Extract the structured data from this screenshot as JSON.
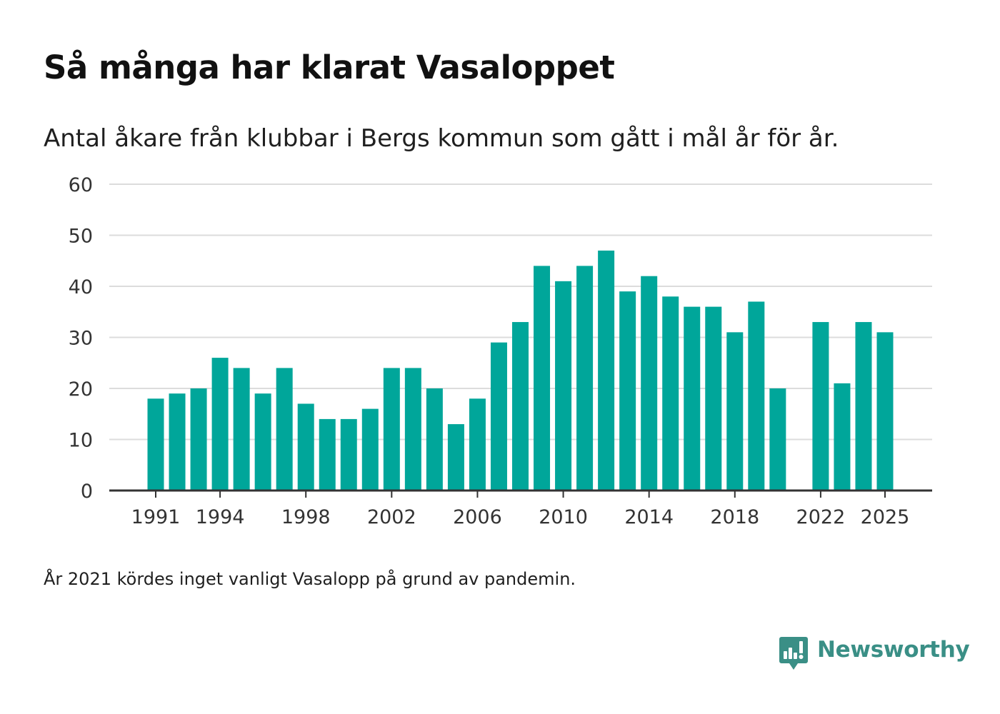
{
  "title": "Så många har klarat Vasaloppet",
  "subtitle": "Antal åkare från klubbar i Bergs kommun som gått i mål år för år.",
  "footnote": "År 2021 kördes inget vanligt Vasalopp på grund av pandemin.",
  "brand": {
    "name": "Newsworthy",
    "icon": "newsworthy-logo-icon",
    "color": "#3a8f86"
  },
  "colors": {
    "bar": "#00a69a",
    "grid": "#dcdcdc",
    "axis": "#333333"
  },
  "chart_data": {
    "type": "bar",
    "title": "Så många har klarat Vasaloppet",
    "xlabel": "",
    "ylabel": "",
    "ylim": [
      0,
      60
    ],
    "yticks": [
      0,
      10,
      20,
      30,
      40,
      50,
      60
    ],
    "xticks": [
      1991,
      1994,
      1998,
      2002,
      2006,
      2010,
      2014,
      2018,
      2022,
      2025
    ],
    "xlim": [
      1991,
      2025
    ],
    "grid": true,
    "legend": "none",
    "categories": [
      1991,
      1992,
      1993,
      1994,
      1995,
      1996,
      1997,
      1998,
      1999,
      2000,
      2001,
      2002,
      2003,
      2004,
      2005,
      2006,
      2007,
      2008,
      2009,
      2010,
      2011,
      2012,
      2013,
      2014,
      2015,
      2016,
      2017,
      2018,
      2019,
      2020,
      2021,
      2022,
      2023,
      2024,
      2025
    ],
    "values": [
      18,
      19,
      20,
      26,
      24,
      19,
      24,
      17,
      14,
      14,
      16,
      24,
      24,
      20,
      13,
      18,
      29,
      33,
      44,
      41,
      44,
      47,
      39,
      42,
      38,
      36,
      36,
      31,
      37,
      20,
      null,
      33,
      21,
      33,
      31
    ]
  }
}
